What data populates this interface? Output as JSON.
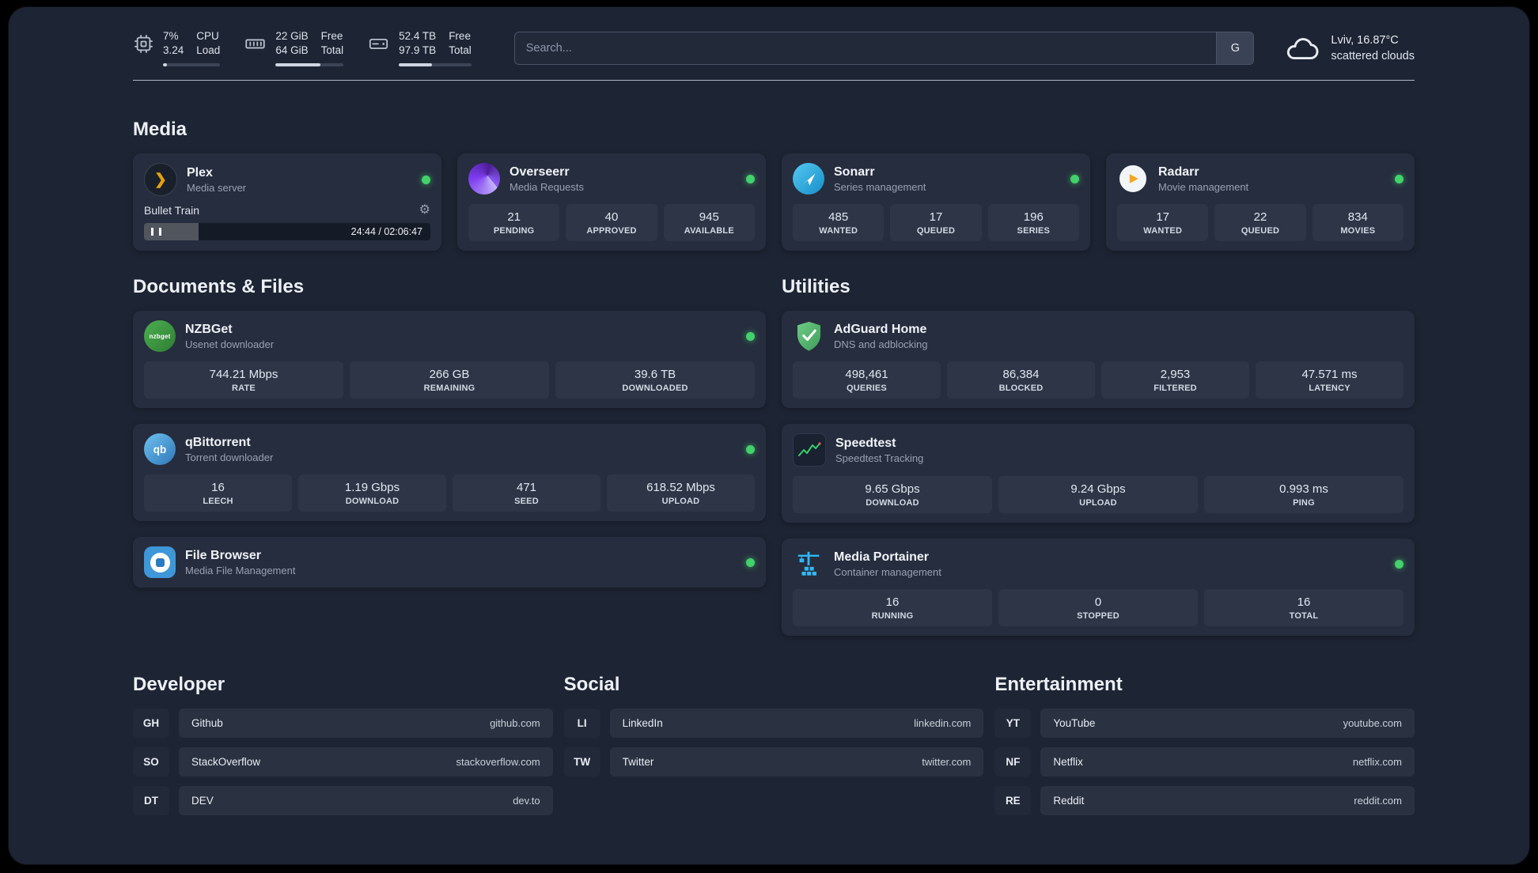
{
  "topbar": {
    "cpu": {
      "value": "7%",
      "secondary": "3.24",
      "label1": "CPU",
      "label2": "Load",
      "progress": 7
    },
    "ram": {
      "value": "22 GiB",
      "secondary": "64 GiB",
      "label1": "Free",
      "label2": "Total",
      "progress": 66
    },
    "disk": {
      "value": "52.4 TB",
      "secondary": "97.9 TB",
      "label1": "Free",
      "label2": "Total",
      "progress": 46
    },
    "search": {
      "placeholder": "Search...",
      "provider": "G"
    },
    "weather": {
      "location": "Lviv, 16.87°C",
      "condition": "scattered clouds"
    }
  },
  "media": {
    "title": "Media",
    "plex": {
      "name": "Plex",
      "desc": "Media server",
      "now_playing": "Bullet Train",
      "time": "24:44 / 02:06:47",
      "progress": 19
    },
    "overseerr": {
      "name": "Overseerr",
      "desc": "Media Requests",
      "stats": [
        {
          "value": "21",
          "label": "PENDING"
        },
        {
          "value": "40",
          "label": "APPROVED"
        },
        {
          "value": "945",
          "label": "AVAILABLE"
        }
      ]
    },
    "sonarr": {
      "name": "Sonarr",
      "desc": "Series management",
      "stats": [
        {
          "value": "485",
          "label": "WANTED"
        },
        {
          "value": "17",
          "label": "QUEUED"
        },
        {
          "value": "196",
          "label": "SERIES"
        }
      ]
    },
    "radarr": {
      "name": "Radarr",
      "desc": "Movie management",
      "stats": [
        {
          "value": "17",
          "label": "WANTED"
        },
        {
          "value": "22",
          "label": "QUEUED"
        },
        {
          "value": "834",
          "label": "MOVIES"
        }
      ]
    }
  },
  "documents": {
    "title": "Documents & Files",
    "nzbget": {
      "name": "NZBGet",
      "desc": "Usenet downloader",
      "icon_text": "nzbget",
      "stats": [
        {
          "value": "744.21 Mbps",
          "label": "RATE"
        },
        {
          "value": "266 GB",
          "label": "REMAINING"
        },
        {
          "value": "39.6 TB",
          "label": "DOWNLOADED"
        }
      ]
    },
    "qbittorrent": {
      "name": "qBittorrent",
      "desc": "Torrent downloader",
      "icon_text": "qb",
      "stats": [
        {
          "value": "16",
          "label": "LEECH"
        },
        {
          "value": "1.19 Gbps",
          "label": "DOWNLOAD"
        },
        {
          "value": "471",
          "label": "SEED"
        },
        {
          "value": "618.52 Mbps",
          "label": "UPLOAD"
        }
      ]
    },
    "filebrowser": {
      "name": "File Browser",
      "desc": "Media File Management"
    }
  },
  "utilities": {
    "title": "Utilities",
    "adguard": {
      "name": "AdGuard Home",
      "desc": "DNS and adblocking",
      "stats": [
        {
          "value": "498,461",
          "label": "QUERIES"
        },
        {
          "value": "86,384",
          "label": "BLOCKED"
        },
        {
          "value": "2,953",
          "label": "FILTERED"
        },
        {
          "value": "47.571 ms",
          "label": "LATENCY"
        }
      ]
    },
    "speedtest": {
      "name": "Speedtest",
      "desc": "Speedtest Tracking",
      "stats": [
        {
          "value": "9.65 Gbps",
          "label": "DOWNLOAD"
        },
        {
          "value": "9.24 Gbps",
          "label": "UPLOAD"
        },
        {
          "value": "0.993 ms",
          "label": "PING"
        }
      ]
    },
    "portainer": {
      "name": "Media Portainer",
      "desc": "Container management",
      "stats": [
        {
          "value": "16",
          "label": "RUNNING"
        },
        {
          "value": "0",
          "label": "STOPPED"
        },
        {
          "value": "16",
          "label": "TOTAL"
        }
      ]
    }
  },
  "bookmarks": {
    "developer": {
      "title": "Developer",
      "items": [
        {
          "abbr": "GH",
          "name": "Github",
          "url": "github.com"
        },
        {
          "abbr": "SO",
          "name": "StackOverflow",
          "url": "stackoverflow.com"
        },
        {
          "abbr": "DT",
          "name": "DEV",
          "url": "dev.to"
        }
      ]
    },
    "social": {
      "title": "Social",
      "items": [
        {
          "abbr": "LI",
          "name": "LinkedIn",
          "url": "linkedin.com"
        },
        {
          "abbr": "TW",
          "name": "Twitter",
          "url": "twitter.com"
        }
      ]
    },
    "entertainment": {
      "title": "Entertainment",
      "items": [
        {
          "abbr": "YT",
          "name": "YouTube",
          "url": "youtube.com"
        },
        {
          "abbr": "NF",
          "name": "Netflix",
          "url": "netflix.com"
        },
        {
          "abbr": "RE",
          "name": "Reddit",
          "url": "reddit.com"
        }
      ]
    }
  }
}
